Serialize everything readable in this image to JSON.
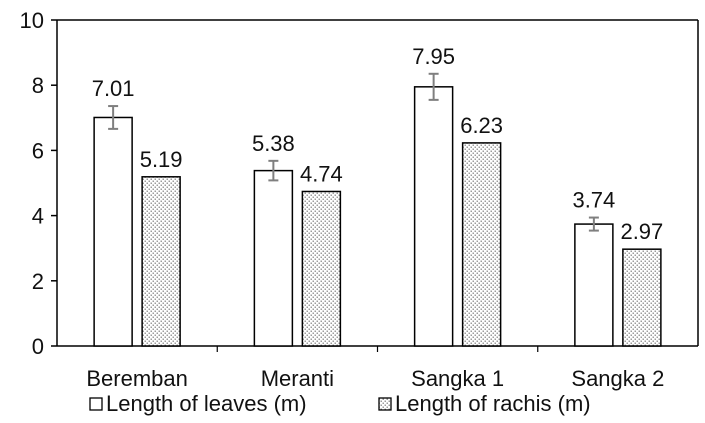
{
  "chart_data": {
    "type": "bar",
    "categories": [
      "Beremban",
      "Meranti",
      "Sangka 1",
      "Sangka 2"
    ],
    "series": [
      {
        "name": "Length of leaves (m)",
        "values": [
          7.01,
          5.38,
          7.95,
          3.74
        ],
        "error": [
          0.35,
          0.3,
          0.4,
          0.2
        ],
        "labels": [
          "7.01",
          "5.38",
          "7.95",
          "3.74"
        ]
      },
      {
        "name": "Length of rachis (m)",
        "values": [
          5.19,
          4.74,
          6.23,
          2.97
        ],
        "labels": [
          "5.19",
          "4.74",
          "6.23",
          "2.97"
        ]
      }
    ],
    "y_ticks": [
      "0",
      "2",
      "4",
      "6",
      "8",
      "10"
    ],
    "ylim": [
      0,
      10
    ],
    "grid": false,
    "legend_position": "bottom",
    "colors": {
      "axis": "#000000",
      "bar_stroke": "#000000",
      "leaves_fill": "#ffffff",
      "rachis_fill": "#ffffff",
      "rachis_dot": "#666666",
      "error_bar": "#7f7f7f",
      "text": "#111111"
    }
  }
}
